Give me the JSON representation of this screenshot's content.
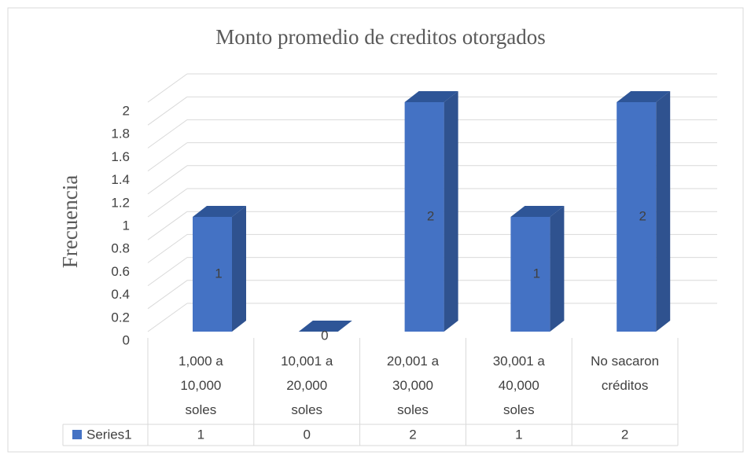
{
  "chart_data": {
    "type": "bar3d",
    "title": "Monto promedio de creditos otorgados",
    "y_label": "Frecuencia",
    "categories": [
      "1,000 a 10,000 soles",
      "10,001 a 20,000 soles",
      "20,001 a 30,000 soles",
      "30,001 a 40,000 soles",
      "No sacaron créditos"
    ],
    "series": [
      {
        "name": "Series1",
        "color": "#4472c4",
        "values": [
          1,
          0,
          2,
          1,
          2
        ]
      }
    ],
    "ylim": [
      0,
      2
    ],
    "yticks": [
      0,
      0.2,
      0.4,
      0.6,
      0.8,
      1,
      1.2,
      1.4,
      1.6,
      1.8,
      2
    ],
    "grid": true,
    "data_table": true
  }
}
